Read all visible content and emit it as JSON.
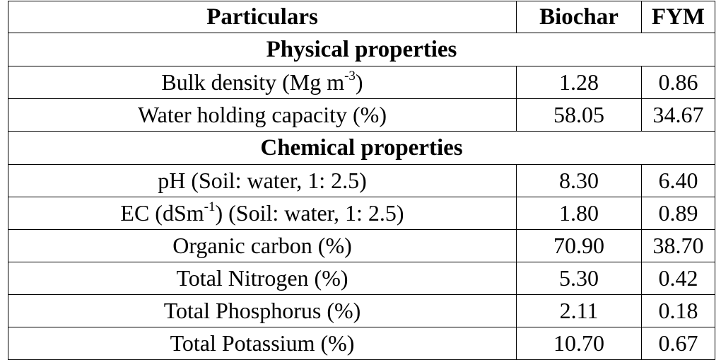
{
  "table": {
    "headers": {
      "particulars": "Particulars",
      "biochar": "Biochar",
      "fym": "FYM"
    },
    "sections": [
      {
        "title": "Physical properties",
        "rows": [
          {
            "label": "Bulk density (Mg m",
            "sup": "-3",
            "label_after": ")",
            "biochar": "1.28",
            "fym": "0.86"
          },
          {
            "label": "Water holding capacity (%)",
            "sup": "",
            "label_after": "",
            "biochar": "58.05",
            "fym": "34.67"
          }
        ]
      },
      {
        "title": "Chemical properties",
        "rows": [
          {
            "label": "pH (Soil: water, 1: 2.5)",
            "sup": "",
            "label_after": "",
            "biochar": "8.30",
            "fym": "6.40"
          },
          {
            "label": "EC (dSm",
            "sup": "-1",
            "label_after": ") (Soil: water, 1: 2.5)",
            "biochar": "1.80",
            "fym": "0.89"
          },
          {
            "label": "Organic carbon (%)",
            "sup": "",
            "label_after": "",
            "biochar": "70.90",
            "fym": "38.70"
          },
          {
            "label": "Total Nitrogen (%)",
            "sup": "",
            "label_after": "",
            "biochar": "5.30",
            "fym": "0.42"
          },
          {
            "label": "Total Phosphorus (%)",
            "sup": "",
            "label_after": "",
            "biochar": "2.11",
            "fym": "0.18"
          },
          {
            "label": "Total Potassium (%)",
            "sup": "",
            "label_after": "",
            "biochar": "10.70",
            "fym": "0.67"
          }
        ]
      }
    ]
  }
}
